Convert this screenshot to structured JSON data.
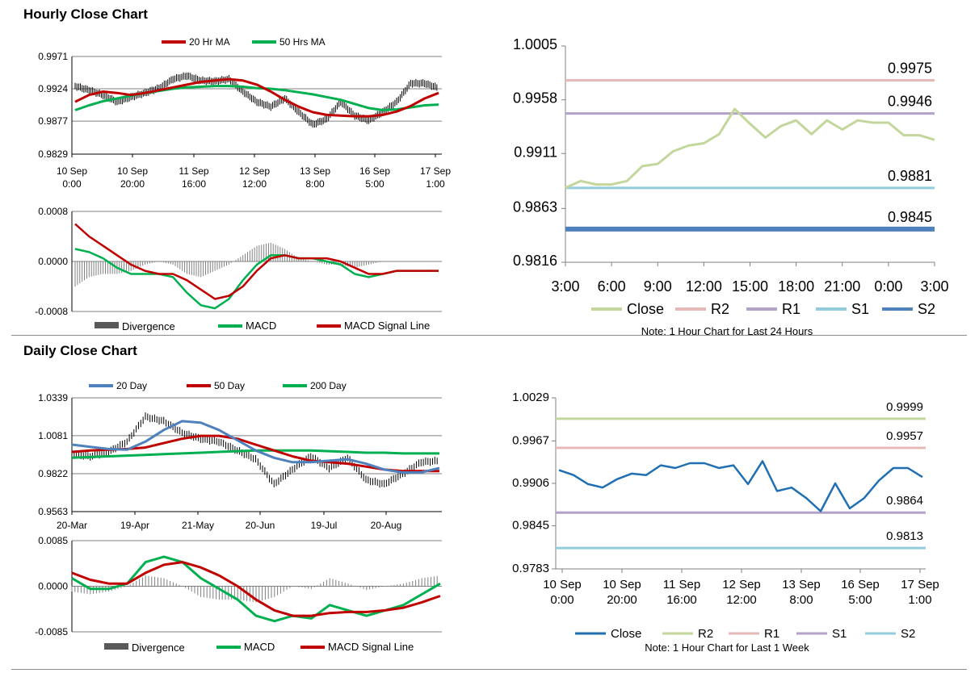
{
  "sections": {
    "hourly_title": "Hourly Close Chart",
    "daily_title": "Daily Close Chart"
  },
  "colors": {
    "ma_red": "#c00000",
    "ma_green": "#00b050",
    "ma_blue": "#4f81bd",
    "close_light": "#c3d69b",
    "close_dark": "#1f6fb2",
    "r2_pink": "#e6b9b8",
    "r1_purple": "#b3a2c7",
    "s1_cyan": "#93cddd",
    "s2_blue": "#4f81bd",
    "r2_green": "#c3d69b"
  },
  "chart_data": [
    {
      "id": "hourly_price",
      "type": "line",
      "legend": [
        "20 Hr MA",
        "50 Hrs MA"
      ],
      "yticks": [
        "0.9971",
        "0.9924",
        "0.9877",
        "0.9829"
      ],
      "ylim": [
        0.9829,
        0.9971
      ],
      "xticks": [
        [
          "10 Sep",
          "0:00"
        ],
        [
          "10 Sep",
          "20:00"
        ],
        [
          "11 Sep",
          "16:00"
        ],
        [
          "12 Sep",
          "12:00"
        ],
        [
          "13 Sep",
          "8:00"
        ],
        [
          "16 Sep",
          "5:00"
        ],
        [
          "17 Sep",
          "1:00"
        ]
      ],
      "series": [
        {
          "name": "20 Hr MA",
          "values": [
            0.9905,
            0.9915,
            0.992,
            0.9918,
            0.9915,
            0.9918,
            0.9922,
            0.9926,
            0.993,
            0.9934,
            0.9936,
            0.9938,
            0.9936,
            0.993,
            0.992,
            0.9908,
            0.9898,
            0.989,
            0.9886,
            0.9885,
            0.9884,
            0.9884,
            0.9886,
            0.9891,
            0.9899,
            0.991,
            0.9918
          ]
        },
        {
          "name": "50 Hrs MA",
          "values": [
            0.9893,
            0.99,
            0.9906,
            0.991,
            0.9914,
            0.9918,
            0.9921,
            0.9924,
            0.9926,
            0.9927,
            0.9928,
            0.9928,
            0.9927,
            0.9925,
            0.9924,
            0.9922,
            0.9919,
            0.9916,
            0.9912,
            0.9908,
            0.9902,
            0.9896,
            0.9893,
            0.9894,
            0.9897,
            0.99,
            0.9901
          ]
        },
        {
          "name": "price",
          "values": [
            0.9928,
            0.9922,
            0.9915,
            0.9905,
            0.9912,
            0.9918,
            0.9925,
            0.9938,
            0.9943,
            0.9936,
            0.9935,
            0.9938,
            0.992,
            0.9905,
            0.9898,
            0.991,
            0.989,
            0.9872,
            0.988,
            0.9905,
            0.9885,
            0.9878,
            0.989,
            0.9905,
            0.9932,
            0.9932,
            0.9925
          ]
        }
      ]
    },
    {
      "id": "hourly_macd",
      "type": "line",
      "legend": [
        "Divergence",
        "MACD",
        "MACD Signal Line"
      ],
      "yticks": [
        "0.0008",
        "0.0000",
        "-0.0008"
      ],
      "ylim": [
        -0.0008,
        0.0008
      ],
      "series": [
        {
          "name": "MACD",
          "values": [
            0.0002,
            0.00015,
            5e-05,
            -0.0001,
            -0.0002,
            -0.0002,
            -0.0002,
            -0.00025,
            -0.0005,
            -0.0007,
            -0.00075,
            -0.0006,
            -0.0003,
            -5e-05,
            0.0001,
            0.0001,
            5e-05,
            5e-05,
            0.0,
            -5e-05,
            -0.0002,
            -0.00025,
            -0.0002,
            -0.00015,
            -0.00015,
            -0.00015,
            -0.00015
          ]
        },
        {
          "name": "MACD Signal Line",
          "values": [
            0.0006,
            0.0004,
            0.00025,
            0.0001,
            -5e-05,
            -0.00015,
            -0.0002,
            -0.0002,
            -0.0003,
            -0.00045,
            -0.0006,
            -0.00055,
            -0.0004,
            -0.00015,
            5e-05,
            0.0001,
            5e-05,
            5e-05,
            5e-05,
            0.0,
            -0.0001,
            -0.0002,
            -0.0002,
            -0.00015,
            -0.00015,
            -0.00015,
            -0.00015
          ]
        },
        {
          "name": "Divergence",
          "values": [
            -0.0004,
            -0.00025,
            -0.0002,
            -0.0002,
            -0.00015,
            -5e-05,
            0.0,
            -5e-05,
            -0.0002,
            -0.00025,
            -0.00015,
            -5e-05,
            0.0001,
            0.00025,
            0.0003,
            0.0002,
            5e-05,
            0.0,
            -5e-05,
            -5e-05,
            -0.0001,
            -5e-05,
            0.0,
            0.0,
            0.0,
            0.0,
            0.0
          ]
        }
      ]
    },
    {
      "id": "hourly_pivot",
      "type": "line",
      "yticks": [
        "1.0005",
        "0.9958",
        "0.9911",
        "0.9863",
        "0.9816"
      ],
      "ylim": [
        0.9816,
        1.0005
      ],
      "xticks": [
        "3:00",
        "6:00",
        "9:00",
        "12:00",
        "15:00",
        "18:00",
        "21:00",
        "0:00",
        "3:00"
      ],
      "legend": [
        "Close",
        "R2",
        "R1",
        "S1",
        "S2"
      ],
      "note": "Note: 1 Hour Chart for Last 24 Hours",
      "levels": [
        {
          "name": "R2",
          "value": 0.9975,
          "label": "0.9975"
        },
        {
          "name": "R1",
          "value": 0.9946,
          "label": "0.9946"
        },
        {
          "name": "S1",
          "value": 0.9881,
          "label": "0.9881"
        },
        {
          "name": "S2",
          "value": 0.9845,
          "label": "0.9845"
        }
      ],
      "series": [
        {
          "name": "Close",
          "values": [
            0.9881,
            0.9887,
            0.9884,
            0.9884,
            0.9887,
            0.99,
            0.9902,
            0.9913,
            0.9918,
            0.992,
            0.9928,
            0.995,
            0.9937,
            0.9925,
            0.9935,
            0.994,
            0.9928,
            0.994,
            0.9932,
            0.994,
            0.9938,
            0.9938,
            0.9927,
            0.9927,
            0.9923
          ]
        }
      ]
    },
    {
      "id": "daily_price",
      "type": "line",
      "legend": [
        "20 Day",
        "50 Day",
        "200 Day"
      ],
      "yticks": [
        "1.0339",
        "1.0081",
        "0.9822",
        "0.9563"
      ],
      "ylim": [
        0.9563,
        1.0339
      ],
      "xticks": [
        "20-Mar",
        "19-Apr",
        "21-May",
        "20-Jun",
        "19-Jul",
        "20-Aug"
      ],
      "series": [
        {
          "name": "20 Day",
          "values": [
            1.002,
            1.0005,
            0.999,
            0.9985,
            1.004,
            1.012,
            1.018,
            1.017,
            1.012,
            1.005,
            0.998,
            0.993,
            0.99,
            0.99,
            0.991,
            0.992,
            0.989,
            0.985,
            0.983,
            0.983,
            0.986
          ]
        },
        {
          "name": "50 Day",
          "values": [
            0.997,
            0.998,
            0.9985,
            0.999,
            1.0,
            1.003,
            1.006,
            1.008,
            1.008,
            1.006,
            1.002,
            0.998,
            0.994,
            0.991,
            0.99,
            0.989,
            0.987,
            0.985,
            0.984,
            0.984,
            0.984
          ]
        },
        {
          "name": "200 Day",
          "values": [
            0.993,
            0.9935,
            0.994,
            0.9945,
            0.995,
            0.9955,
            0.996,
            0.9965,
            0.997,
            0.9975,
            0.998,
            0.998,
            0.998,
            0.998,
            0.9975,
            0.997,
            0.9965,
            0.9965,
            0.996,
            0.996,
            0.996
          ]
        },
        {
          "name": "price",
          "values": [
            0.9955,
            0.994,
            0.997,
            1.004,
            1.021,
            1.018,
            1.01,
            1.006,
            1.004,
            0.998,
            0.992,
            0.975,
            0.985,
            0.994,
            0.986,
            0.993,
            0.978,
            0.975,
            0.982,
            0.99,
            0.991
          ]
        }
      ]
    },
    {
      "id": "daily_macd",
      "type": "line",
      "legend": [
        "Divergence",
        "MACD",
        "MACD Signal Line"
      ],
      "yticks": [
        "0.0085",
        "0.0000",
        "-0.0085"
      ],
      "ylim": [
        -0.0085,
        0.0085
      ],
      "series": [
        {
          "name": "MACD",
          "values": [
            0.0015,
            -0.0005,
            -0.0005,
            0.0005,
            0.0045,
            0.0055,
            0.0045,
            0.0015,
            -0.0005,
            -0.0025,
            -0.0055,
            -0.0065,
            -0.0055,
            -0.006,
            -0.0035,
            -0.0045,
            -0.0055,
            -0.0045,
            -0.0035,
            -0.0015,
            0.0005
          ]
        },
        {
          "name": "MACD Signal Line",
          "values": [
            0.0025,
            0.0012,
            0.0005,
            0.0005,
            0.0025,
            0.004,
            0.0045,
            0.0035,
            0.002,
            0.0,
            -0.0025,
            -0.0045,
            -0.0055,
            -0.0055,
            -0.005,
            -0.0048,
            -0.0048,
            -0.0045,
            -0.004,
            -0.003,
            -0.0018
          ]
        },
        {
          "name": "Divergence",
          "values": [
            -0.001,
            -0.0015,
            -0.001,
            0.0,
            0.002,
            0.0015,
            0.0,
            -0.002,
            -0.0025,
            -0.0025,
            -0.003,
            -0.002,
            0.0,
            -0.0005,
            0.0015,
            0.0005,
            -0.0007,
            0.0,
            0.0005,
            0.0015,
            0.002
          ]
        }
      ]
    },
    {
      "id": "weekly_pivot",
      "type": "line",
      "yticks": [
        "1.0029",
        "0.9967",
        "0.9906",
        "0.9845",
        "0.9783"
      ],
      "ylim": [
        0.9783,
        1.0029
      ],
      "xticks": [
        [
          "10 Sep",
          "0:00"
        ],
        [
          "10 Sep",
          "20:00"
        ],
        [
          "11 Sep",
          "16:00"
        ],
        [
          "12 Sep",
          "12:00"
        ],
        [
          "13 Sep",
          "8:00"
        ],
        [
          "16 Sep",
          "5:00"
        ],
        [
          "17 Sep",
          "1:00"
        ]
      ],
      "legend": [
        "Close",
        "R2",
        "R1",
        "S1",
        "S2"
      ],
      "note": "Note: 1 Hour Chart for Last 1 Week",
      "levels": [
        {
          "name": "R2",
          "value": 0.9999,
          "label": "0.9999"
        },
        {
          "name": "R1",
          "value": 0.9957,
          "label": "0.9957"
        },
        {
          "name": "S1",
          "value": 0.9864,
          "label": "0.9864"
        },
        {
          "name": "S2",
          "value": 0.9813,
          "label": "0.9813"
        }
      ],
      "series": [
        {
          "name": "Close",
          "values": [
            0.9925,
            0.9918,
            0.9905,
            0.99,
            0.9912,
            0.992,
            0.9918,
            0.9932,
            0.9928,
            0.9935,
            0.9935,
            0.9928,
            0.9932,
            0.9905,
            0.9938,
            0.9895,
            0.99,
            0.9885,
            0.9866,
            0.9906,
            0.987,
            0.9885,
            0.991,
            0.9928,
            0.9928,
            0.9915
          ]
        }
      ]
    }
  ]
}
